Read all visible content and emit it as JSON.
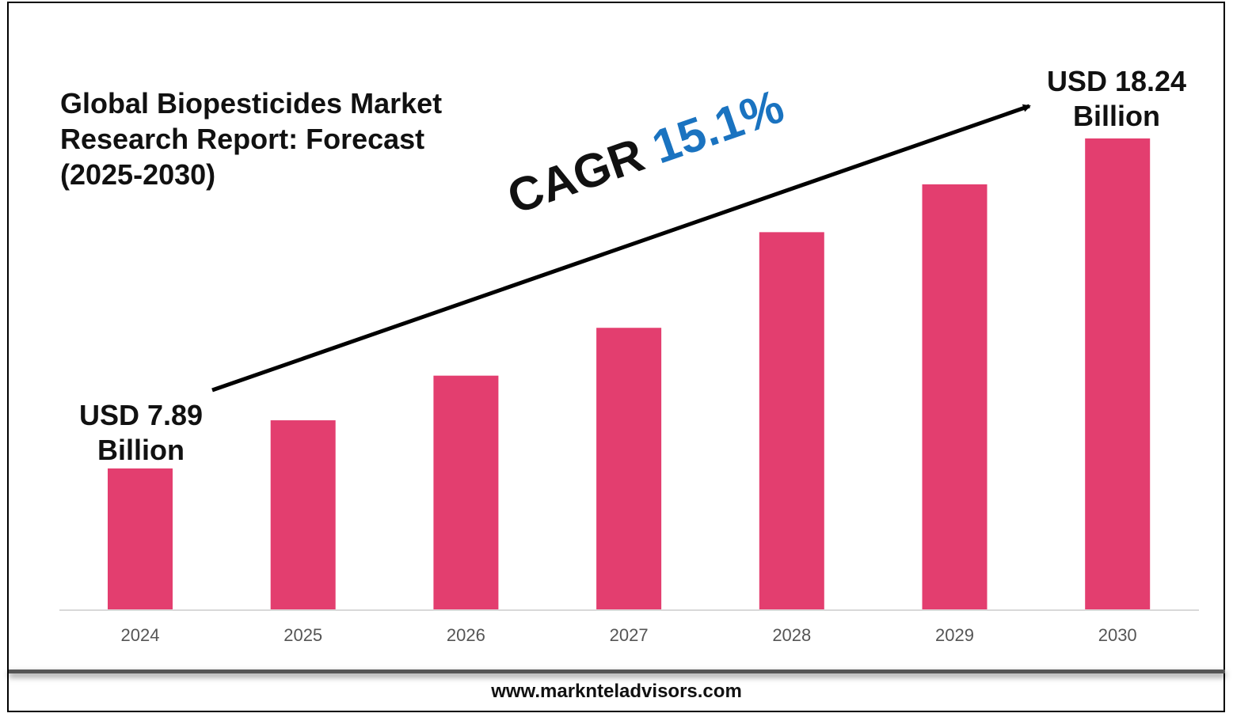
{
  "chart_data": {
    "type": "bar",
    "title": "Global Biopesticides Market Research Report: Forecast (2025-2030)",
    "categories": [
      "2024",
      "2025",
      "2026",
      "2027",
      "2028",
      "2029",
      "2030"
    ],
    "values": [
      7.89,
      9.4,
      10.8,
      12.3,
      15.3,
      16.8,
      18.24
    ],
    "unit": "USD Billion",
    "xlabel": "",
    "ylabel": "",
    "grid": false,
    "bar_color": "#e33e6f",
    "annotations": {
      "start_label_1": "USD 7.89",
      "start_label_2": "Billion",
      "end_label_1": "USD 18.24",
      "end_label_2": "Billion",
      "cagr_prefix": "CAGR",
      "cagr_value": "15.1%"
    }
  },
  "title_lines": [
    "Global Biopesticides Market",
    "Research Report: Forecast",
    "(2025-2030)"
  ],
  "footer": "www.marknteladvisors.com",
  "colors": {
    "accent": "#1a73c0",
    "bar": "#e33e6f"
  }
}
